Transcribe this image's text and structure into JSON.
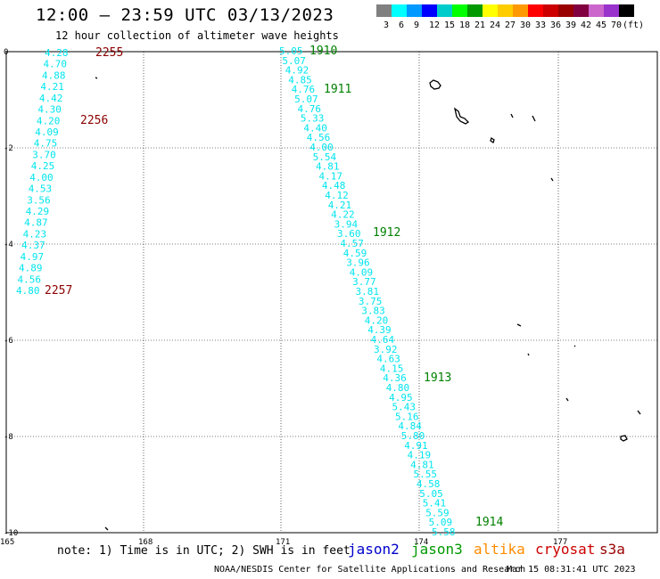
{
  "title": "12:00 — 23:59 UTC 03/13/2023",
  "subtitle": "12 hour collection of altimeter wave heights",
  "colorbar": {
    "colors": [
      "#808080",
      "#00ffff",
      "#0099ff",
      "#0000ff",
      "#00cccc",
      "#00ff00",
      "#009900",
      "#ffff00",
      "#ffcc00",
      "#ff9900",
      "#ff0000",
      "#cc0000",
      "#990000",
      "#800040",
      "#cc66cc",
      "#9933cc",
      "#000000"
    ],
    "labels": [
      "3",
      "6",
      "9",
      "12",
      "15",
      "18",
      "21",
      "24",
      "27",
      "30",
      "33",
      "36",
      "39",
      "42",
      "45",
      "70",
      "(ft)"
    ]
  },
  "map": {
    "lon_ticks": [
      "165",
      "168",
      "171",
      "174",
      "177"
    ],
    "lat_ticks": [
      "0",
      "-2",
      "-4",
      "-6",
      "-8",
      "-10"
    ],
    "track_a": {
      "color": "#00e5ee",
      "values": [
        "4.28",
        "4.70",
        "4.88",
        "4.21",
        "4.42",
        "4.30",
        "4.20",
        "4.09",
        "4.75",
        "3.70",
        "4.25",
        "4.00",
        "4.53",
        "3.56",
        "4.29",
        "4.87",
        "4.23",
        "4.37",
        "4.97",
        "4.89",
        "4.56",
        "4.80"
      ],
      "times": [
        "2255",
        "2256",
        "2257"
      ],
      "time_color": "#8b0000"
    },
    "track_b": {
      "color": "#00e5ee",
      "values": [
        "5.05",
        "5.07",
        "4.92",
        "4.85",
        "4.76",
        "5.07",
        "4.76",
        "5.33",
        "4.40",
        "4.56",
        "4.00",
        "5.54",
        "4.81",
        "4.17",
        "4.48",
        "4.12",
        "4.21",
        "4.22",
        "3.94",
        "3.60",
        "4.57",
        "4.59",
        "3.96",
        "4.09",
        "3.77",
        "3.81",
        "3.75",
        "3.83",
        "4.20",
        "4.39",
        "4.64",
        "3.92",
        "4.63",
        "4.15",
        "4.36",
        "4.80",
        "4.95",
        "5.43",
        "5.16",
        "4.84",
        "5.80",
        "4.91",
        "4.19",
        "4.81",
        "5.55",
        "4.58",
        "5.05",
        "5.41",
        "5.59",
        "5.09",
        "5.58"
      ],
      "times": [
        "1910",
        "1911",
        "1912",
        "1913",
        "1914"
      ],
      "time_color": "#008000"
    }
  },
  "note": "note: 1) Time is in UTC; 2) SWH is in feet",
  "satellites": [
    {
      "name": "jason2",
      "color": "#0000cc"
    },
    {
      "name": "jason3",
      "color": "#009900"
    },
    {
      "name": "altika",
      "color": "#ff8c00"
    },
    {
      "name": "cryosat",
      "color": "#cc0000"
    },
    {
      "name": "s3a",
      "color": "#990000"
    }
  ],
  "footer": {
    "credit": "NOAA/NESDIS Center for Satellite Applications and Research",
    "timestamp": "Mar 15 08:31:41 UTC 2023"
  }
}
